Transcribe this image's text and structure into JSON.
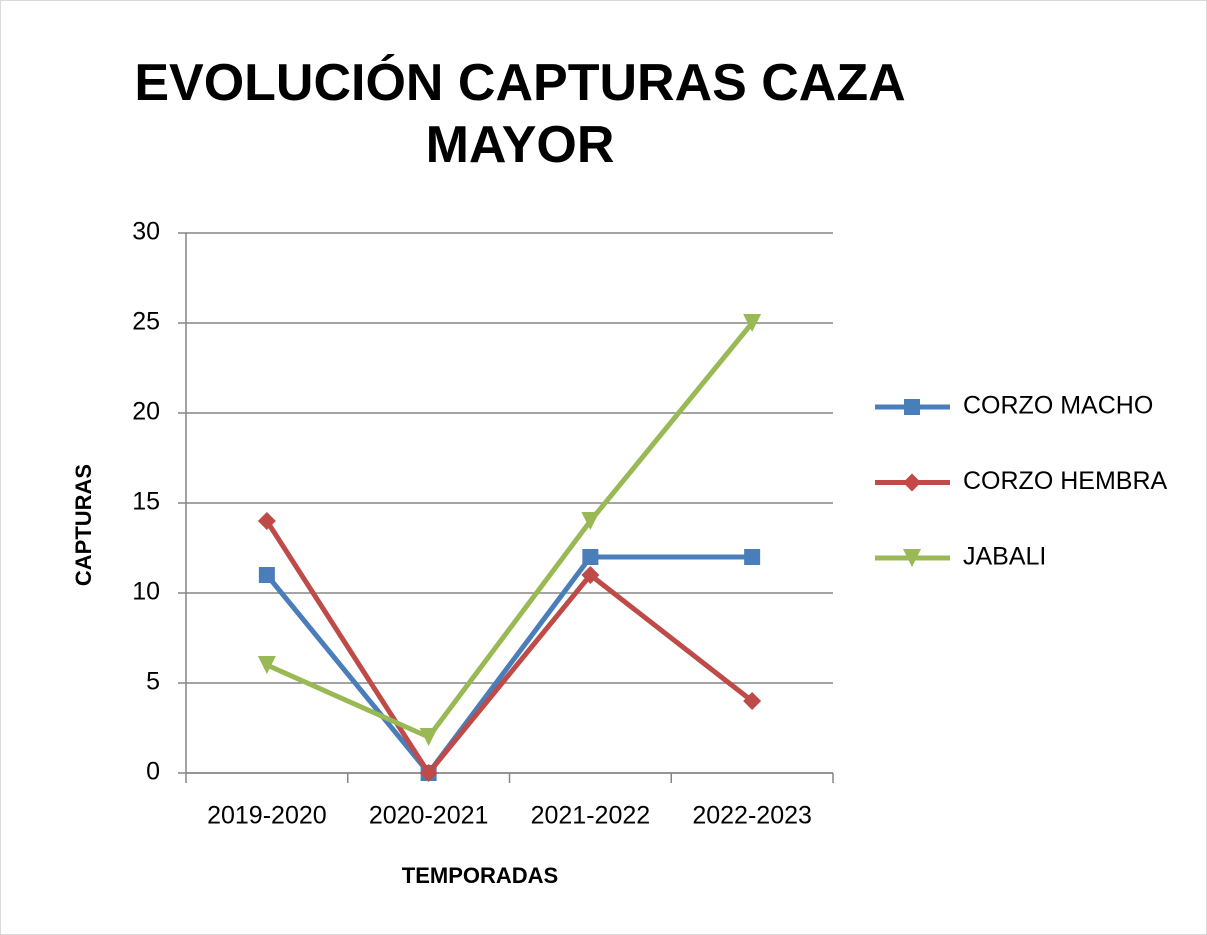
{
  "chart_data": {
    "type": "line",
    "title": "EVOLUCIÓN CAPTURAS CAZA MAYOR",
    "x_label": "TEMPORADAS",
    "y_label": "CAPTURAS",
    "categories": [
      "2019-2020",
      "2020-2021",
      "2021-2022",
      "2022-2023"
    ],
    "series": [
      {
        "name": "CORZO MACHO",
        "color": "#4a7ebb",
        "marker": "square",
        "values": [
          11,
          0,
          12,
          12
        ]
      },
      {
        "name": "CORZO HEMBRA",
        "color": "#be4b48",
        "marker": "diamond",
        "values": [
          14,
          0,
          11,
          4
        ]
      },
      {
        "name": "JABALI",
        "color": "#98b954",
        "marker": "triangle-down",
        "values": [
          6,
          2,
          14,
          25
        ]
      }
    ],
    "ylim": [
      0,
      30
    ],
    "yticks": [
      0,
      5,
      10,
      15,
      20,
      25,
      30
    ],
    "grid": true,
    "legend": "right"
  }
}
